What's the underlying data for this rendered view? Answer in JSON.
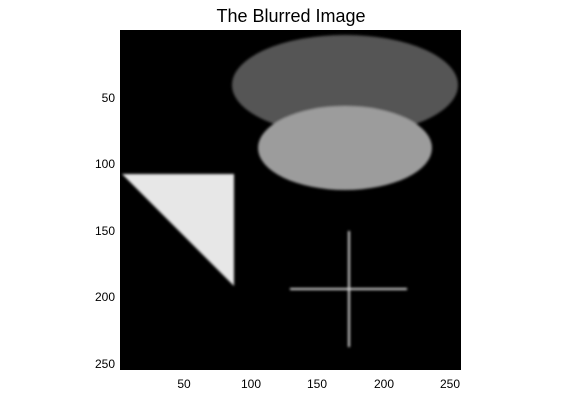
{
  "figure": {
    "title": "The Blurred Image"
  },
  "axes": {
    "y_ticks": [
      "50",
      "100",
      "150",
      "200",
      "250"
    ],
    "x_ticks": [
      "50",
      "100",
      "150",
      "200",
      "250"
    ]
  },
  "colors": {
    "background": "#000000",
    "large_ellipse": "#555555",
    "small_ellipse": "#9c9c9c",
    "triangle": "#e7e7e7",
    "cross": "#d7d7d7"
  }
}
